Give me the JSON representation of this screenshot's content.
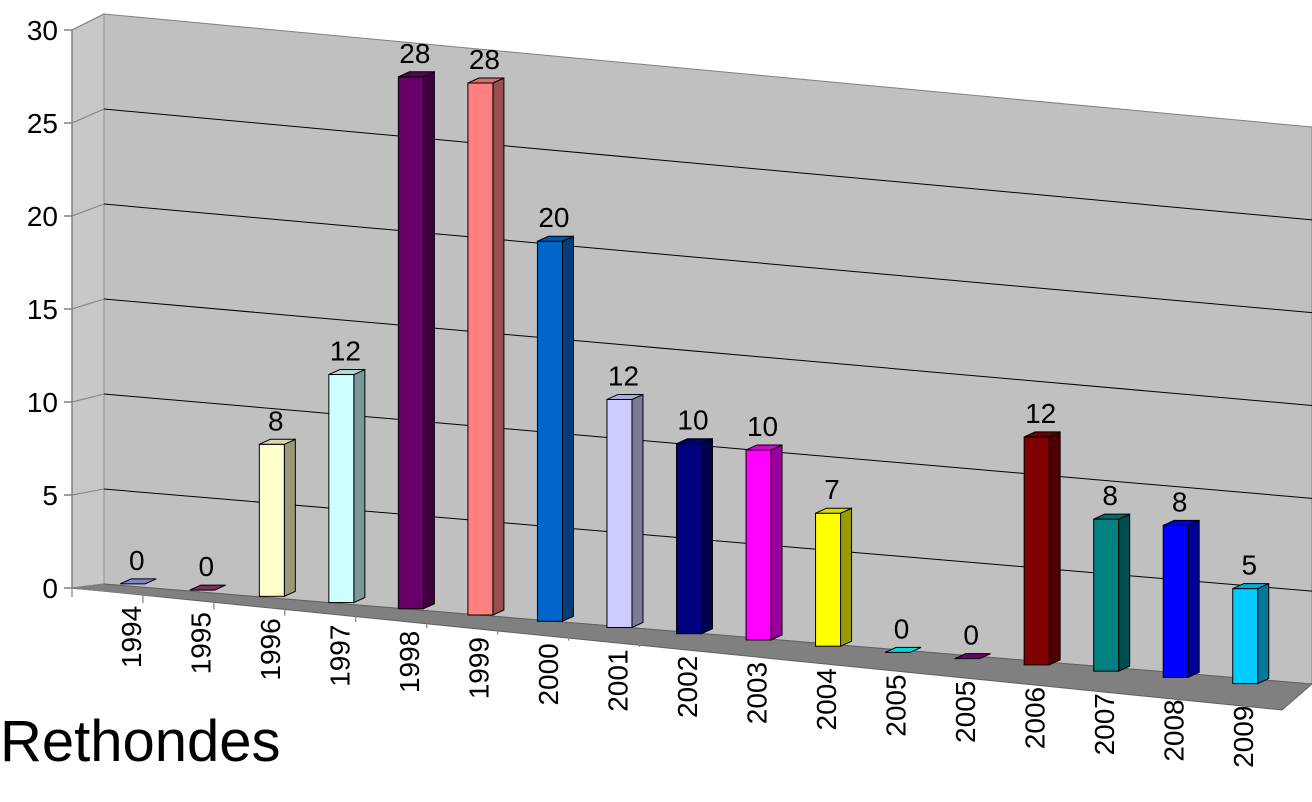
{
  "chart_data": {
    "type": "bar",
    "title": "Rethondes",
    "categories": [
      "1994",
      "1995",
      "1996",
      "1997",
      "1998",
      "1999",
      "2000",
      "2001",
      "2002",
      "2003",
      "2004",
      "2005",
      "2005",
      "2006",
      "2007",
      "2008",
      "2009"
    ],
    "values": [
      0,
      0,
      8,
      12,
      28,
      28,
      20,
      12,
      10,
      10,
      7,
      0,
      0,
      12,
      8,
      8,
      5
    ],
    "data_labels": [
      "0",
      "0",
      "8",
      "12",
      "28",
      "28",
      "20",
      "12",
      "10",
      "10",
      "7",
      "0",
      "0",
      "12",
      "8",
      "8",
      "5"
    ],
    "colors": [
      "#9999ff",
      "#993366",
      "#ffffcc",
      "#ccffff",
      "#660066",
      "#ff8080",
      "#0066cc",
      "#ccccff",
      "#000080",
      "#ff00ff",
      "#ffff00",
      "#00ffff",
      "#800080",
      "#800000",
      "#008080",
      "#0000ff",
      "#00ccff"
    ],
    "ylim": [
      0,
      30
    ],
    "yticks": [
      "0",
      "5",
      "10",
      "15",
      "20",
      "25",
      "30"
    ],
    "grid": true,
    "style": "3d-perspective"
  }
}
